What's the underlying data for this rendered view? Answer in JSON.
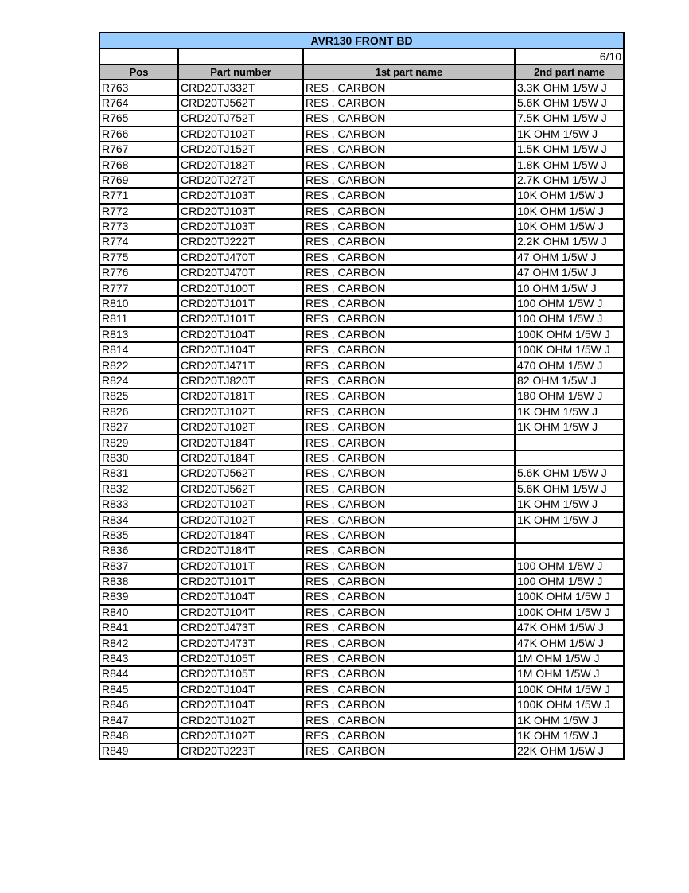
{
  "title": "AVR130 FRONT BD",
  "page": "6/10",
  "colors": {
    "title_bg": "#99ccff",
    "header_bg": "#c0c0c0"
  },
  "columns": [
    "Pos",
    "Part number",
    "1st part name",
    "2nd part name"
  ],
  "rows": [
    [
      "R763",
      "CRD20TJ332T",
      "RES , CARBON",
      "3.3K OHM 1/5W J"
    ],
    [
      "R764",
      "CRD20TJ562T",
      "RES , CARBON",
      "5.6K OHM 1/5W J"
    ],
    [
      "R765",
      "CRD20TJ752T",
      "RES , CARBON",
      "7.5K OHM 1/5W J"
    ],
    [
      "R766",
      "CRD20TJ102T",
      "RES , CARBON",
      "1K OHM 1/5W J"
    ],
    [
      "R767",
      "CRD20TJ152T",
      "RES , CARBON",
      "1.5K OHM 1/5W J"
    ],
    [
      "R768",
      "CRD20TJ182T",
      "RES , CARBON",
      "1.8K OHM 1/5W J"
    ],
    [
      "R769",
      "CRD20TJ272T",
      "RES , CARBON",
      "2.7K OHM 1/5W J"
    ],
    [
      "R771",
      "CRD20TJ103T",
      "RES , CARBON",
      "10K OHM 1/5W J"
    ],
    [
      "R772",
      "CRD20TJ103T",
      "RES , CARBON",
      "10K OHM 1/5W J"
    ],
    [
      "R773",
      "CRD20TJ103T",
      "RES , CARBON",
      "10K OHM 1/5W J"
    ],
    [
      "R774",
      "CRD20TJ222T",
      "RES , CARBON",
      "2.2K OHM 1/5W J"
    ],
    [
      "R775",
      "CRD20TJ470T",
      "RES , CARBON",
      "47 OHM 1/5W J"
    ],
    [
      "R776",
      "CRD20TJ470T",
      "RES , CARBON",
      "47 OHM 1/5W J"
    ],
    [
      "R777",
      "CRD20TJ100T",
      "RES , CARBON",
      "10 OHM 1/5W J"
    ],
    [
      "R810",
      "CRD20TJ101T",
      "RES , CARBON",
      "100 OHM 1/5W J"
    ],
    [
      "R811",
      "CRD20TJ101T",
      "RES , CARBON",
      "100 OHM 1/5W J"
    ],
    [
      "R813",
      "CRD20TJ104T",
      "RES , CARBON",
      "100K OHM 1/5W J"
    ],
    [
      "R814",
      "CRD20TJ104T",
      "RES , CARBON",
      "100K OHM 1/5W J"
    ],
    [
      "R822",
      "CRD20TJ471T",
      "RES , CARBON",
      "470 OHM 1/5W J"
    ],
    [
      "R824",
      "CRD20TJ820T",
      "RES , CARBON",
      "82 OHM 1/5W J"
    ],
    [
      "R825",
      "CRD20TJ181T",
      "RES , CARBON",
      "180 OHM 1/5W J"
    ],
    [
      "R826",
      "CRD20TJ102T",
      "RES , CARBON",
      "1K OHM 1/5W J"
    ],
    [
      "R827",
      "CRD20TJ102T",
      "RES , CARBON",
      "1K OHM 1/5W J"
    ],
    [
      "R829",
      "CRD20TJ184T",
      "RES , CARBON",
      ""
    ],
    [
      "R830",
      "CRD20TJ184T",
      "RES , CARBON",
      ""
    ],
    [
      "R831",
      "CRD20TJ562T",
      "RES , CARBON",
      "5.6K OHM 1/5W J"
    ],
    [
      "R832",
      "CRD20TJ562T",
      "RES , CARBON",
      "5.6K OHM 1/5W J"
    ],
    [
      "R833",
      "CRD20TJ102T",
      "RES , CARBON",
      "1K OHM 1/5W J"
    ],
    [
      "R834",
      "CRD20TJ102T",
      "RES , CARBON",
      "1K OHM 1/5W J"
    ],
    [
      "R835",
      "CRD20TJ184T",
      "RES , CARBON",
      ""
    ],
    [
      "R836",
      "CRD20TJ184T",
      "RES , CARBON",
      ""
    ],
    [
      "R837",
      "CRD20TJ101T",
      "RES , CARBON",
      "100 OHM 1/5W J"
    ],
    [
      "R838",
      "CRD20TJ101T",
      "RES , CARBON",
      "100 OHM 1/5W J"
    ],
    [
      "R839",
      "CRD20TJ104T",
      "RES , CARBON",
      "100K OHM 1/5W J"
    ],
    [
      "R840",
      "CRD20TJ104T",
      "RES , CARBON",
      "100K OHM 1/5W J"
    ],
    [
      "R841",
      "CRD20TJ473T",
      "RES , CARBON",
      "47K OHM 1/5W J"
    ],
    [
      "R842",
      "CRD20TJ473T",
      "RES , CARBON",
      "47K OHM 1/5W J"
    ],
    [
      "R843",
      "CRD20TJ105T",
      "RES , CARBON",
      "1M OHM 1/5W J"
    ],
    [
      "R844",
      "CRD20TJ105T",
      "RES , CARBON",
      "1M OHM 1/5W J"
    ],
    [
      "R845",
      "CRD20TJ104T",
      "RES , CARBON",
      "100K OHM 1/5W J"
    ],
    [
      "R846",
      "CRD20TJ104T",
      "RES , CARBON",
      "100K OHM 1/5W J"
    ],
    [
      "R847",
      "CRD20TJ102T",
      "RES , CARBON",
      "1K OHM 1/5W J"
    ],
    [
      "R848",
      "CRD20TJ102T",
      "RES , CARBON",
      "1K OHM 1/5W J"
    ],
    [
      "R849",
      "CRD20TJ223T",
      "RES , CARBON",
      "22K OHM 1/5W J"
    ]
  ]
}
